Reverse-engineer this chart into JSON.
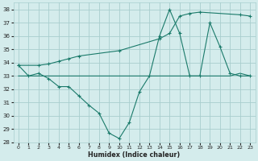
{
  "xlabel": "Humidex (Indice chaleur)",
  "bg_color": "#d4ecec",
  "grid_color": "#a8cece",
  "line_color": "#1a7a6a",
  "xlim": [
    -0.5,
    23.5
  ],
  "ylim": [
    28,
    38.5
  ],
  "yticks": [
    28,
    29,
    30,
    31,
    32,
    33,
    34,
    35,
    36,
    37,
    38
  ],
  "xticks": [
    0,
    1,
    2,
    3,
    4,
    5,
    6,
    7,
    8,
    9,
    10,
    11,
    12,
    13,
    14,
    15,
    16,
    17,
    18,
    19,
    20,
    21,
    22,
    23
  ],
  "series1_x": [
    0,
    1,
    2,
    3,
    4,
    5,
    6,
    7,
    8,
    9,
    10,
    11,
    12,
    13,
    14,
    15,
    16,
    17,
    18,
    19,
    20,
    21,
    22,
    23
  ],
  "series1_y": [
    33.8,
    33.0,
    33.2,
    32.8,
    32.2,
    32.2,
    31.5,
    30.8,
    30.2,
    28.7,
    28.3,
    29.5,
    31.8,
    33.0,
    36.0,
    38.0,
    36.2,
    33.0,
    33.0,
    37.0,
    35.2,
    33.2,
    33.0,
    33.0
  ],
  "series2_x": [
    0,
    2,
    3,
    4,
    5,
    6,
    10,
    14,
    15,
    16,
    17,
    18,
    22,
    23
  ],
  "series2_y": [
    33.8,
    33.8,
    33.9,
    34.1,
    34.3,
    34.5,
    34.9,
    35.8,
    36.2,
    37.5,
    37.7,
    37.8,
    37.6,
    37.5
  ],
  "series3_x": [
    0,
    3,
    10,
    18,
    21,
    22,
    23
  ],
  "series3_y": [
    33.0,
    33.0,
    33.0,
    33.0,
    33.0,
    33.2,
    33.0
  ]
}
